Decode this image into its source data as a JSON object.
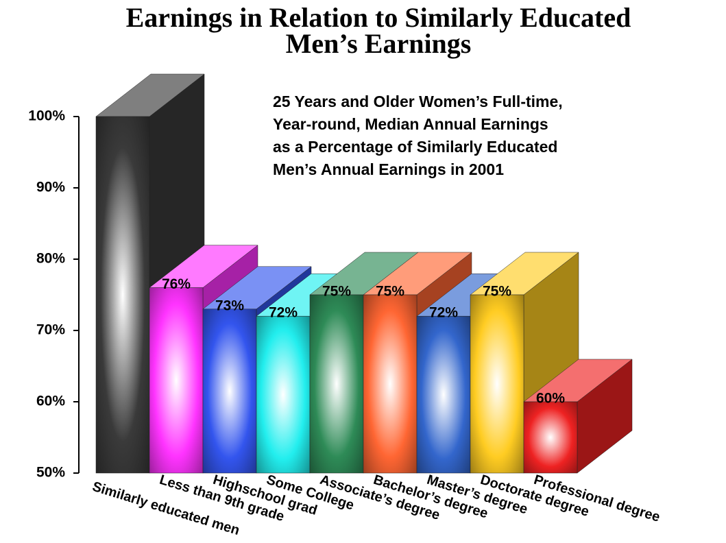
{
  "chart_data": {
    "type": "bar3d",
    "title": [
      "Earnings in Relation to Similarly Educated",
      "Men’s Earnings"
    ],
    "annotation": [
      "25 Years and Older Women’s Full-time,",
      "Year-round, Median Annual Earnings",
      "as a Percentage of Similarly Educated",
      "Men’s Annual Earnings in 2001"
    ],
    "categories": [
      "Similarly educated men",
      "Less than 9th grade",
      "Highschool grad",
      "Some College",
      "Associate’s degree",
      "Bachelor’s degree",
      "Master’s degree",
      "Doctorate degree",
      "Professional degree"
    ],
    "values": [
      100,
      76,
      73,
      72,
      75,
      75,
      72,
      75,
      60
    ],
    "value_labels": [
      null,
      "76%",
      "73%",
      "72%",
      "75%",
      "75%",
      "72%",
      "75%",
      "60%"
    ],
    "colors": [
      "#3a3a3a",
      "#ff33ff",
      "#3355ee",
      "#22eeee",
      "#2e8b57",
      "#ff6633",
      "#3366cc",
      "#ffcc22",
      "#ee2222"
    ],
    "ylim": [
      50,
      100
    ],
    "yticks": [
      {
        "value": 50,
        "label": "50%"
      },
      {
        "value": 60,
        "label": "60%"
      },
      {
        "value": 70,
        "label": "70%"
      },
      {
        "value": 80,
        "label": "80%"
      },
      {
        "value": 90,
        "label": "90%"
      },
      {
        "value": 100,
        "label": "100%"
      }
    ]
  }
}
